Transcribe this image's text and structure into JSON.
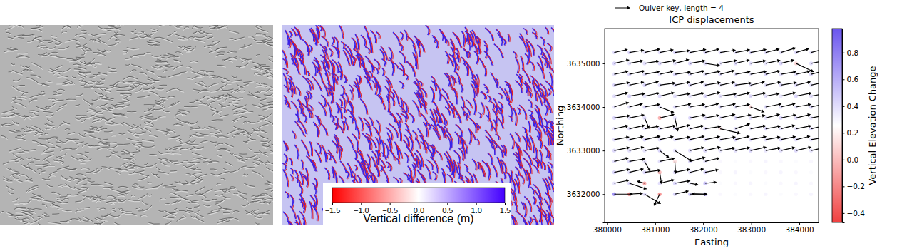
{
  "chart_data": [
    {
      "type": "heatmap",
      "colorbar": {
        "label": "Vertical difference (m)",
        "range": [
          -1.5,
          1.5
        ],
        "ticks": [
          {
            "value": -1.5,
            "label": "−1.5"
          },
          {
            "value": -1,
            "label": "−1.0"
          },
          {
            "value": -0.5,
            "label": "−0.5"
          },
          {
            "value": 0,
            "label": "0.0"
          },
          {
            "value": 0.5,
            "label": "0.5"
          },
          {
            "value": 1,
            "label": "1.0"
          },
          {
            "value": 1.5,
            "label": "1.5"
          }
        ]
      }
    },
    {
      "type": "quiver",
      "title": "ICP displacements",
      "x_label": "Easting",
      "y_label": "Northing",
      "quiver_key": {
        "label": "Quiver key, length = 4",
        "length": 4
      },
      "x": [
        380150,
        380465,
        380780,
        381095,
        381410,
        381725,
        382040,
        382355,
        382670,
        382985,
        383300,
        383615,
        383930,
        384245
      ],
      "y": [
        3635250,
        3635000,
        3634750,
        3634500,
        3634250,
        3634000,
        3633750,
        3633500,
        3633250,
        3633000,
        3632750,
        3632500,
        3632250,
        3632000
      ],
      "u": [
        [
          3.5,
          3.8,
          4.0,
          3.6,
          3.9,
          4.2,
          3.7,
          4.0,
          3.8,
          4.1,
          3.6,
          3.9,
          3.4,
          3.0
        ],
        [
          3.9,
          3.6,
          3.8,
          4.2,
          3.7,
          4.0,
          3.9,
          4.3,
          3.7,
          4.0,
          3.8,
          3.5,
          4.6,
          3.2
        ],
        [
          3.7,
          4.0,
          3.9,
          3.6,
          4.1,
          3.8,
          4.0,
          3.7,
          3.9,
          4.2,
          3.8,
          4.0,
          3.7,
          3.5
        ],
        [
          4.0,
          3.8,
          3.7,
          4.1,
          3.9,
          3.6,
          4.0,
          3.8,
          4.2,
          3.7,
          3.9,
          4.1,
          3.8,
          3.6
        ],
        [
          3.6,
          4.1,
          3.9,
          3.8,
          4.0,
          3.7,
          3.9,
          4.2,
          3.8,
          4.0,
          3.6,
          3.9,
          4.1,
          3.7
        ],
        [
          3.8,
          3.5,
          4.0,
          3.7,
          4.2,
          3.9,
          3.6,
          4.0,
          3.8,
          3.6,
          4.1,
          3.8,
          3.9,
          3.6
        ],
        [
          4.1,
          3.9,
          1.2,
          3.8,
          0.8,
          4.0,
          3.7,
          3.9,
          4.1,
          3.8,
          3.7,
          4.0,
          3.8,
          3.9
        ],
        [
          3.7,
          4.0,
          3.8,
          4.2,
          3.9,
          3.6,
          4.1,
          5.2,
          3.8,
          4.0,
          3.9,
          3.7,
          4.0,
          3.8
        ],
        [
          3.9,
          3.7,
          4.1,
          3.6,
          4.0,
          3.8,
          3.9,
          4.0,
          3.7,
          4.1,
          3.8,
          3.9,
          3.7,
          4.0
        ],
        [
          4.0,
          3.8,
          3.9,
          2.5,
          4.5,
          3.7,
          4.0,
          3.9,
          3.8,
          4.1,
          3.9,
          3.7,
          4.0,
          3.8
        ],
        [
          3.8,
          4.1,
          1.5,
          3.9,
          0.2,
          4.0,
          3.8,
          0,
          0,
          0,
          0,
          0,
          0,
          0
        ],
        [
          4.0,
          3.7,
          4.2,
          0.5,
          3.9,
          3.6,
          3.5,
          0,
          0,
          0,
          0,
          0,
          0,
          0
        ],
        [
          3.9,
          4.5,
          -2.0,
          3.8,
          4.0,
          2.2,
          3.0,
          0,
          0,
          0,
          0,
          0,
          0,
          0
        ],
        [
          4.8,
          3.5,
          4.2,
          -1.5,
          3.6,
          4.5,
          -3.5,
          0,
          0,
          0,
          0,
          0,
          0,
          0
        ]
      ],
      "v": [
        [
          0.8,
          0.6,
          0.9,
          0.7,
          0.5,
          0.8,
          0.9,
          0.6,
          0.7,
          0.8,
          0.9,
          1.2,
          1.0,
          0.8
        ],
        [
          0.9,
          0.7,
          0.6,
          0.8,
          1.0,
          0.7,
          -0.6,
          0.8,
          0.9,
          0.7,
          0.8,
          0.9,
          -2.2,
          0.6
        ],
        [
          0.8,
          0.9,
          0.7,
          0.8,
          0.6,
          0.9,
          0.8,
          1.0,
          0.7,
          0.8,
          0.9,
          0.7,
          0.8,
          0.9
        ],
        [
          0.7,
          0.8,
          1.0,
          0.6,
          0.8,
          0.9,
          0.7,
          0.8,
          0.6,
          0.9,
          0.8,
          0.7,
          0.9,
          0.8
        ],
        [
          0.9,
          0.7,
          0.8,
          0.9,
          0.7,
          0.8,
          1.0,
          0.6,
          0.9,
          0.8,
          0.7,
          0.9,
          0.8,
          0.7
        ],
        [
          1.2,
          0.9,
          0.7,
          -1.4,
          0.8,
          0.7,
          0.9,
          0.8,
          0.7,
          -1.3,
          0.8,
          0.9,
          0.7,
          0.8
        ],
        [
          0.6,
          0.8,
          -2.8,
          0.9,
          -3.5,
          0.8,
          0.7,
          0.9,
          0.8,
          0.7,
          0.9,
          0.8,
          0.9,
          0.7
        ],
        [
          0.8,
          0.9,
          0.7,
          0.8,
          1.0,
          0.8,
          0.6,
          -1.2,
          1.3,
          0.8,
          0.7,
          0.9,
          0.8,
          0.9
        ],
        [
          0.7,
          0.8,
          0.9,
          0.8,
          0.7,
          0.9,
          0.8,
          0.7,
          0.9,
          0.8,
          0.7,
          0.8,
          0.9,
          0.7
        ],
        [
          0.8,
          0.9,
          0.7,
          -2.0,
          -2.8,
          0.8,
          0.9,
          0.7,
          0.8,
          0.9,
          0.7,
          0.8,
          0.9,
          0.8
        ],
        [
          0.9,
          0.7,
          -2.6,
          0.8,
          -3.2,
          1.1,
          0.9,
          0,
          0,
          0,
          0,
          0,
          0,
          0
        ],
        [
          0.8,
          0.9,
          0.6,
          -3.0,
          0.8,
          0.9,
          0.7,
          0,
          0,
          0,
          0,
          0,
          0,
          0
        ],
        [
          0.8,
          -1.5,
          0.6,
          0.9,
          0.7,
          -0.4,
          0.3,
          0,
          0,
          0,
          0,
          0,
          0,
          0
        ],
        [
          0.0,
          0.2,
          -2.5,
          -3.0,
          0.8,
          0.0,
          0.1,
          0,
          0,
          0,
          0,
          0,
          0,
          0
        ]
      ],
      "c": [
        [
          0.45,
          0.5,
          0.4,
          0.45,
          0.5,
          0.42,
          0.48,
          0.45,
          0.4,
          0.5,
          0.45,
          0.42,
          0.48,
          0.4
        ],
        [
          0.5,
          0.42,
          0.45,
          0.48,
          0.4,
          0.5,
          0.45,
          0.42,
          0.48,
          0.45,
          0.4,
          0.5,
          0.05,
          0.45
        ],
        [
          0.42,
          0.48,
          0.45,
          0.4,
          0.5,
          0.45,
          0.42,
          0.48,
          0.45,
          0.4,
          0.5,
          0.45,
          0.42,
          0.48
        ],
        [
          0.48,
          0.4,
          0.5,
          0.45,
          0.42,
          0.48,
          0.45,
          0.4,
          0.5,
          0.45,
          0.42,
          0.48,
          0.45,
          0.4
        ],
        [
          0.45,
          0.5,
          0.42,
          0.48,
          0.45,
          0.4,
          0.5,
          0.45,
          0.42,
          0.48,
          0.45,
          0.4,
          0.5,
          0.45
        ],
        [
          0.4,
          0.45,
          0.5,
          0.42,
          0.48,
          0.45,
          0.4,
          0.5,
          0.45,
          0.05,
          0.48,
          0.45,
          0.42,
          0.5
        ],
        [
          0.5,
          0.42,
          0.45,
          -0.15,
          0.4,
          0.5,
          0.45,
          0.42,
          0.48,
          0.45,
          0.4,
          0.5,
          0.45,
          0.42
        ],
        [
          0.42,
          0.48,
          0.4,
          0.5,
          0.45,
          0.42,
          0.48,
          0.1,
          0.45,
          0.4,
          0.5,
          0.45,
          0.42,
          0.48
        ],
        [
          0.45,
          0.4,
          0.5,
          0.45,
          0.42,
          0.48,
          0.45,
          0.4,
          0.5,
          0.45,
          0.42,
          0.48,
          0.45,
          0.4
        ],
        [
          0.48,
          0.45,
          0.42,
          0.5,
          0.4,
          0.45,
          0.48,
          0.42,
          0.45,
          0.5,
          0.4,
          0.45,
          0.48,
          0.42
        ],
        [
          0.45,
          0.5,
          0.4,
          0.45,
          0.1,
          0.48,
          0.42,
          0.3,
          0.28,
          0.3,
          0.32,
          0.3,
          0.28,
          0.3
        ],
        [
          0.5,
          0.42,
          0.48,
          -0.1,
          0.45,
          0.4,
          0.5,
          0.3,
          0.32,
          0.28,
          0.3,
          0.32,
          0.3,
          0.28
        ],
        [
          0.42,
          0.48,
          -0.2,
          0.45,
          0.5,
          0.35,
          0.6,
          0.28,
          0.3,
          0.32,
          0.28,
          0.3,
          0.32,
          0.3
        ],
        [
          0.9,
          -0.4,
          0.45,
          -0.3,
          0.5,
          0.55,
          0.85,
          0.3,
          0.28,
          0.3,
          0.32,
          0.28,
          0.3,
          0.32
        ]
      ],
      "xlim": [
        379950,
        384400
      ],
      "ylim": [
        3631350,
        3635800
      ],
      "xticks": [
        380000,
        381000,
        382000,
        383000,
        384000
      ],
      "yticks": [
        3632000,
        3633000,
        3634000,
        3635000
      ],
      "colorbar": {
        "label": "Vertical Elevation Change",
        "range": [
          -0.47,
          0.98
        ],
        "ticks": [
          {
            "value": -0.4,
            "label": "−0.4"
          },
          {
            "value": -0.2,
            "label": "−0.2"
          },
          {
            "value": 0,
            "label": "0.0"
          },
          {
            "value": 0.2,
            "label": "0.2"
          },
          {
            "value": 0.4,
            "label": "0.4"
          },
          {
            "value": 0.6,
            "label": "0.6"
          },
          {
            "value": 0.8,
            "label": "0.8"
          }
        ]
      }
    }
  ]
}
